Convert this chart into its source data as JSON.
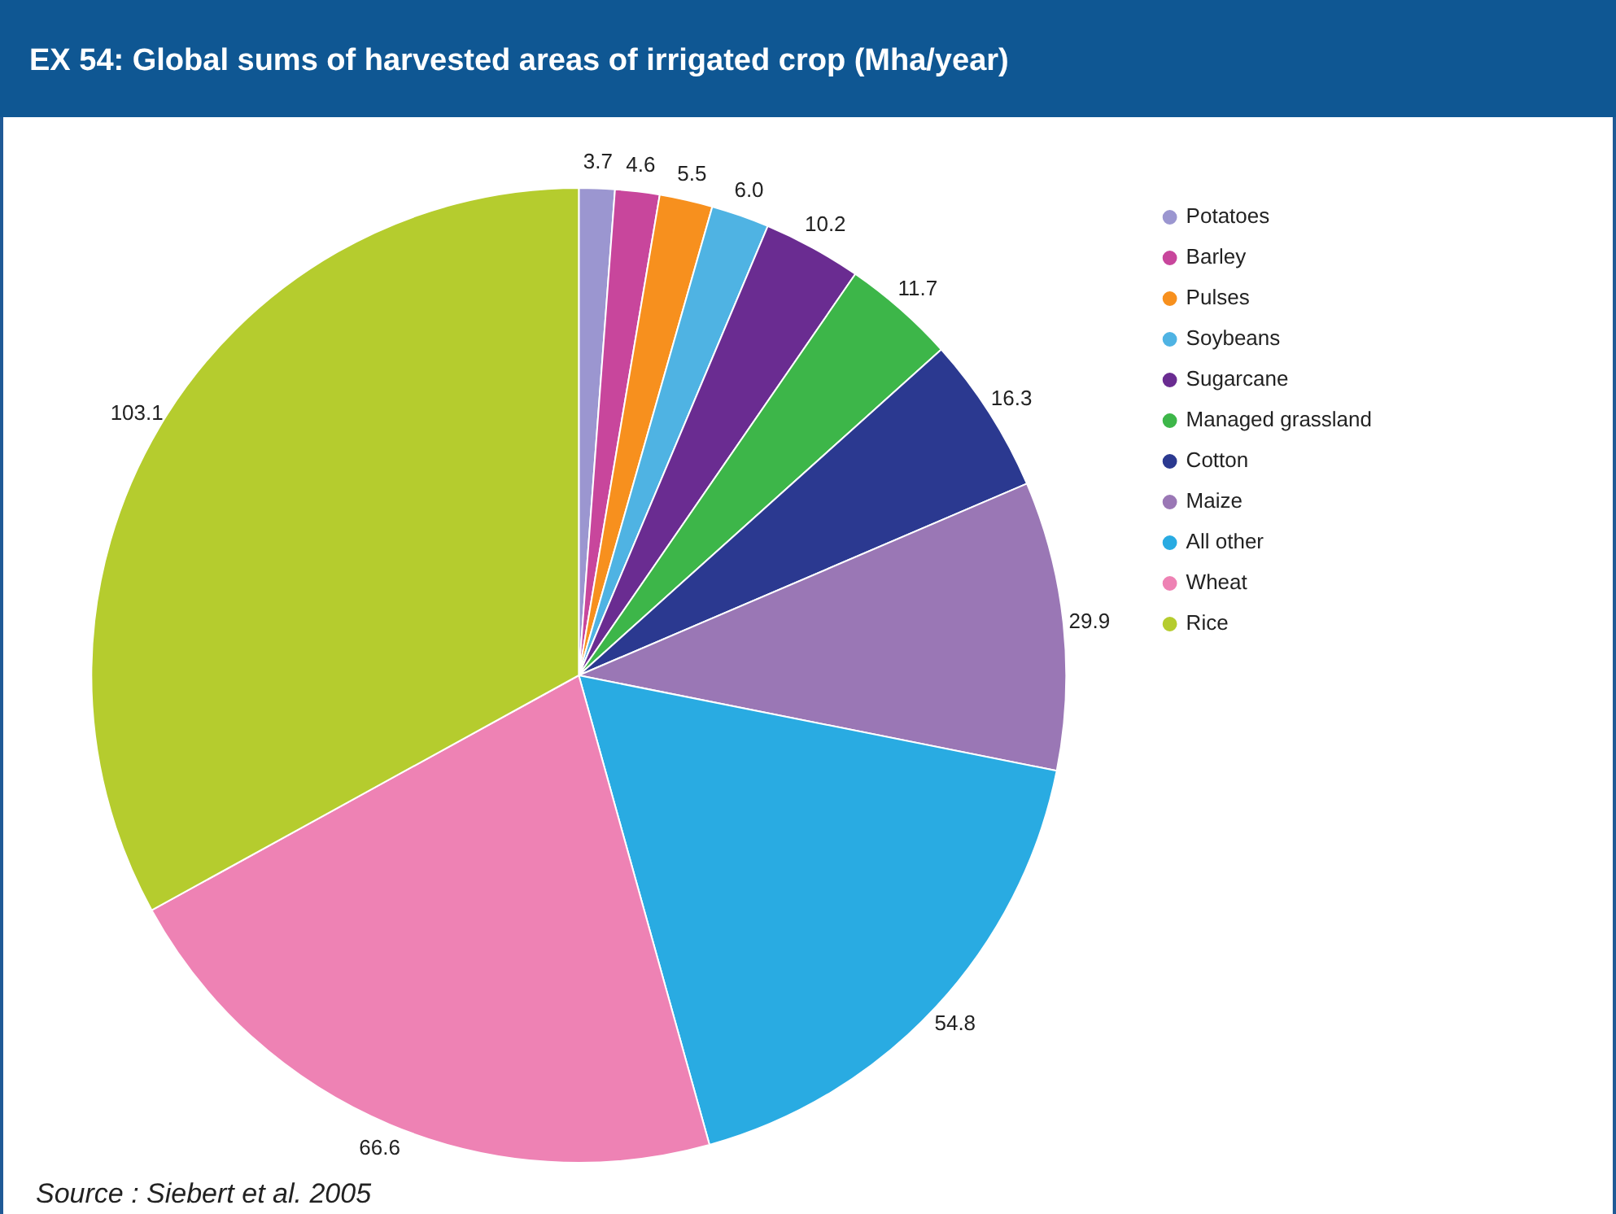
{
  "chart_data": {
    "type": "pie",
    "title": "EX 54: Global sums of harvested areas of irrigated crop (Mha/year)",
    "categories": [
      "Potatoes",
      "Barley",
      "Pulses",
      "Soybeans",
      "Sugarcane",
      "Managed grassland",
      "Cotton",
      "Maize",
      "All other",
      "Wheat",
      "Rice"
    ],
    "values": [
      3.7,
      4.6,
      5.5,
      6.0,
      10.2,
      11.7,
      16.3,
      29.9,
      54.8,
      66.6,
      103.1
    ],
    "colors": [
      "#9b96d0",
      "#c8469c",
      "#f7901e",
      "#4fb3e3",
      "#6a2c91",
      "#3db649",
      "#2b3990",
      "#9a77b5",
      "#29abe2",
      "#ee82b4",
      "#b5cc2e"
    ],
    "value_labels": [
      "3.7",
      "4.6",
      "5.5",
      "6.0",
      "10.2",
      "11.7",
      "16.3",
      "29.9",
      "54.8",
      "66.6",
      "103.1"
    ],
    "legend": "right",
    "annotations": [
      "Source : Siebert et al. 2005"
    ]
  }
}
